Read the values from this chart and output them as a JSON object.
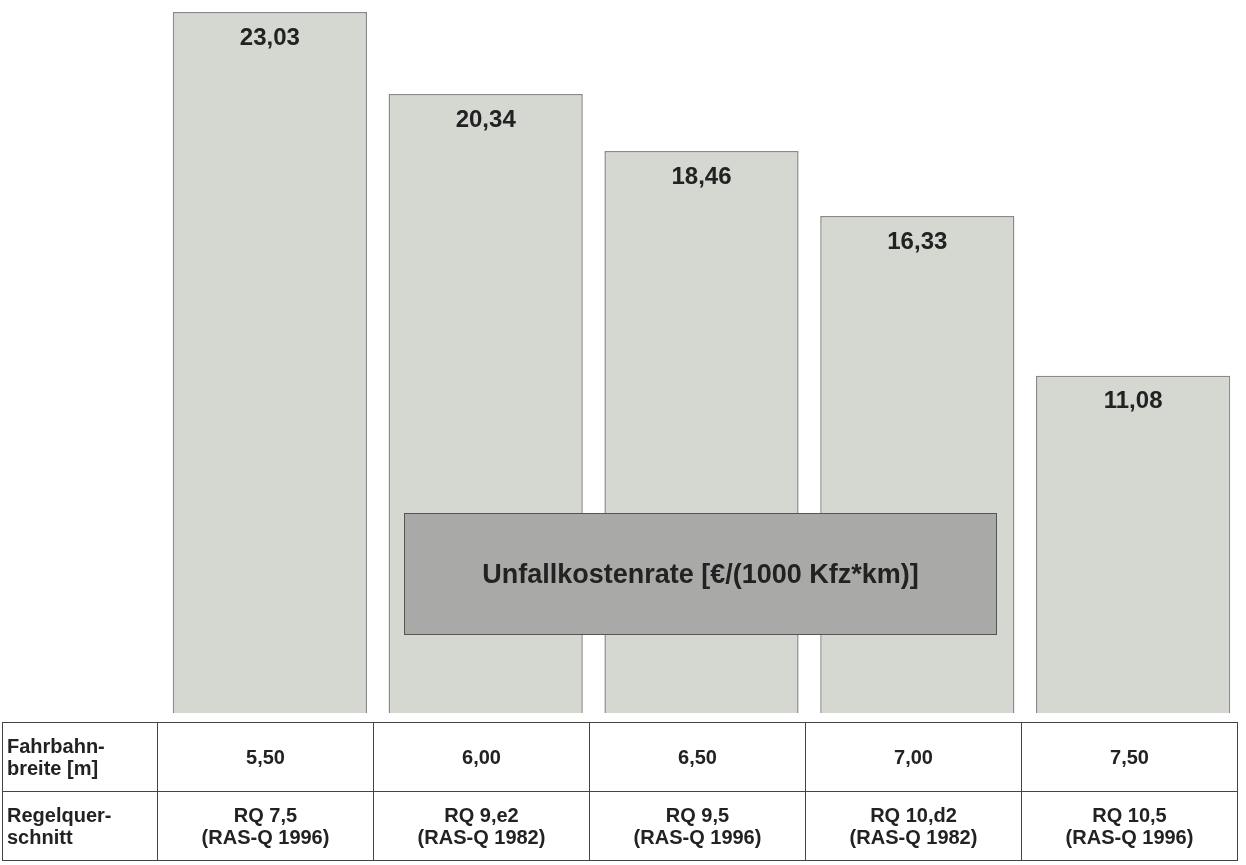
{
  "chart_data": {
    "type": "bar",
    "ylabel": "Unfallkostenrate [€/(1000 Kfz*km)]",
    "xlabel": "Fahrbahn-breite [m]",
    "categories": [
      "5,50",
      "6,00",
      "6,50",
      "7,00",
      "7,50"
    ],
    "values": [
      23.03,
      20.34,
      18.46,
      16.33,
      11.08
    ],
    "value_labels": [
      "23,03",
      "20,34",
      "18,46",
      "16,33",
      "11,08"
    ],
    "color": "#d4d8d1",
    "annotations": [
      "Regelquer-schnitt",
      "RQ 7,5 (RAS-Q 1996)",
      "RQ 9,e2 (RAS-Q 1982)",
      "RQ 9,5 (RAS-Q 1996)",
      "RQ 10,d2 (RAS-Q 1982)",
      "RQ 10,5 (RAS-Q 1996)"
    ],
    "legend": false
  }
}
